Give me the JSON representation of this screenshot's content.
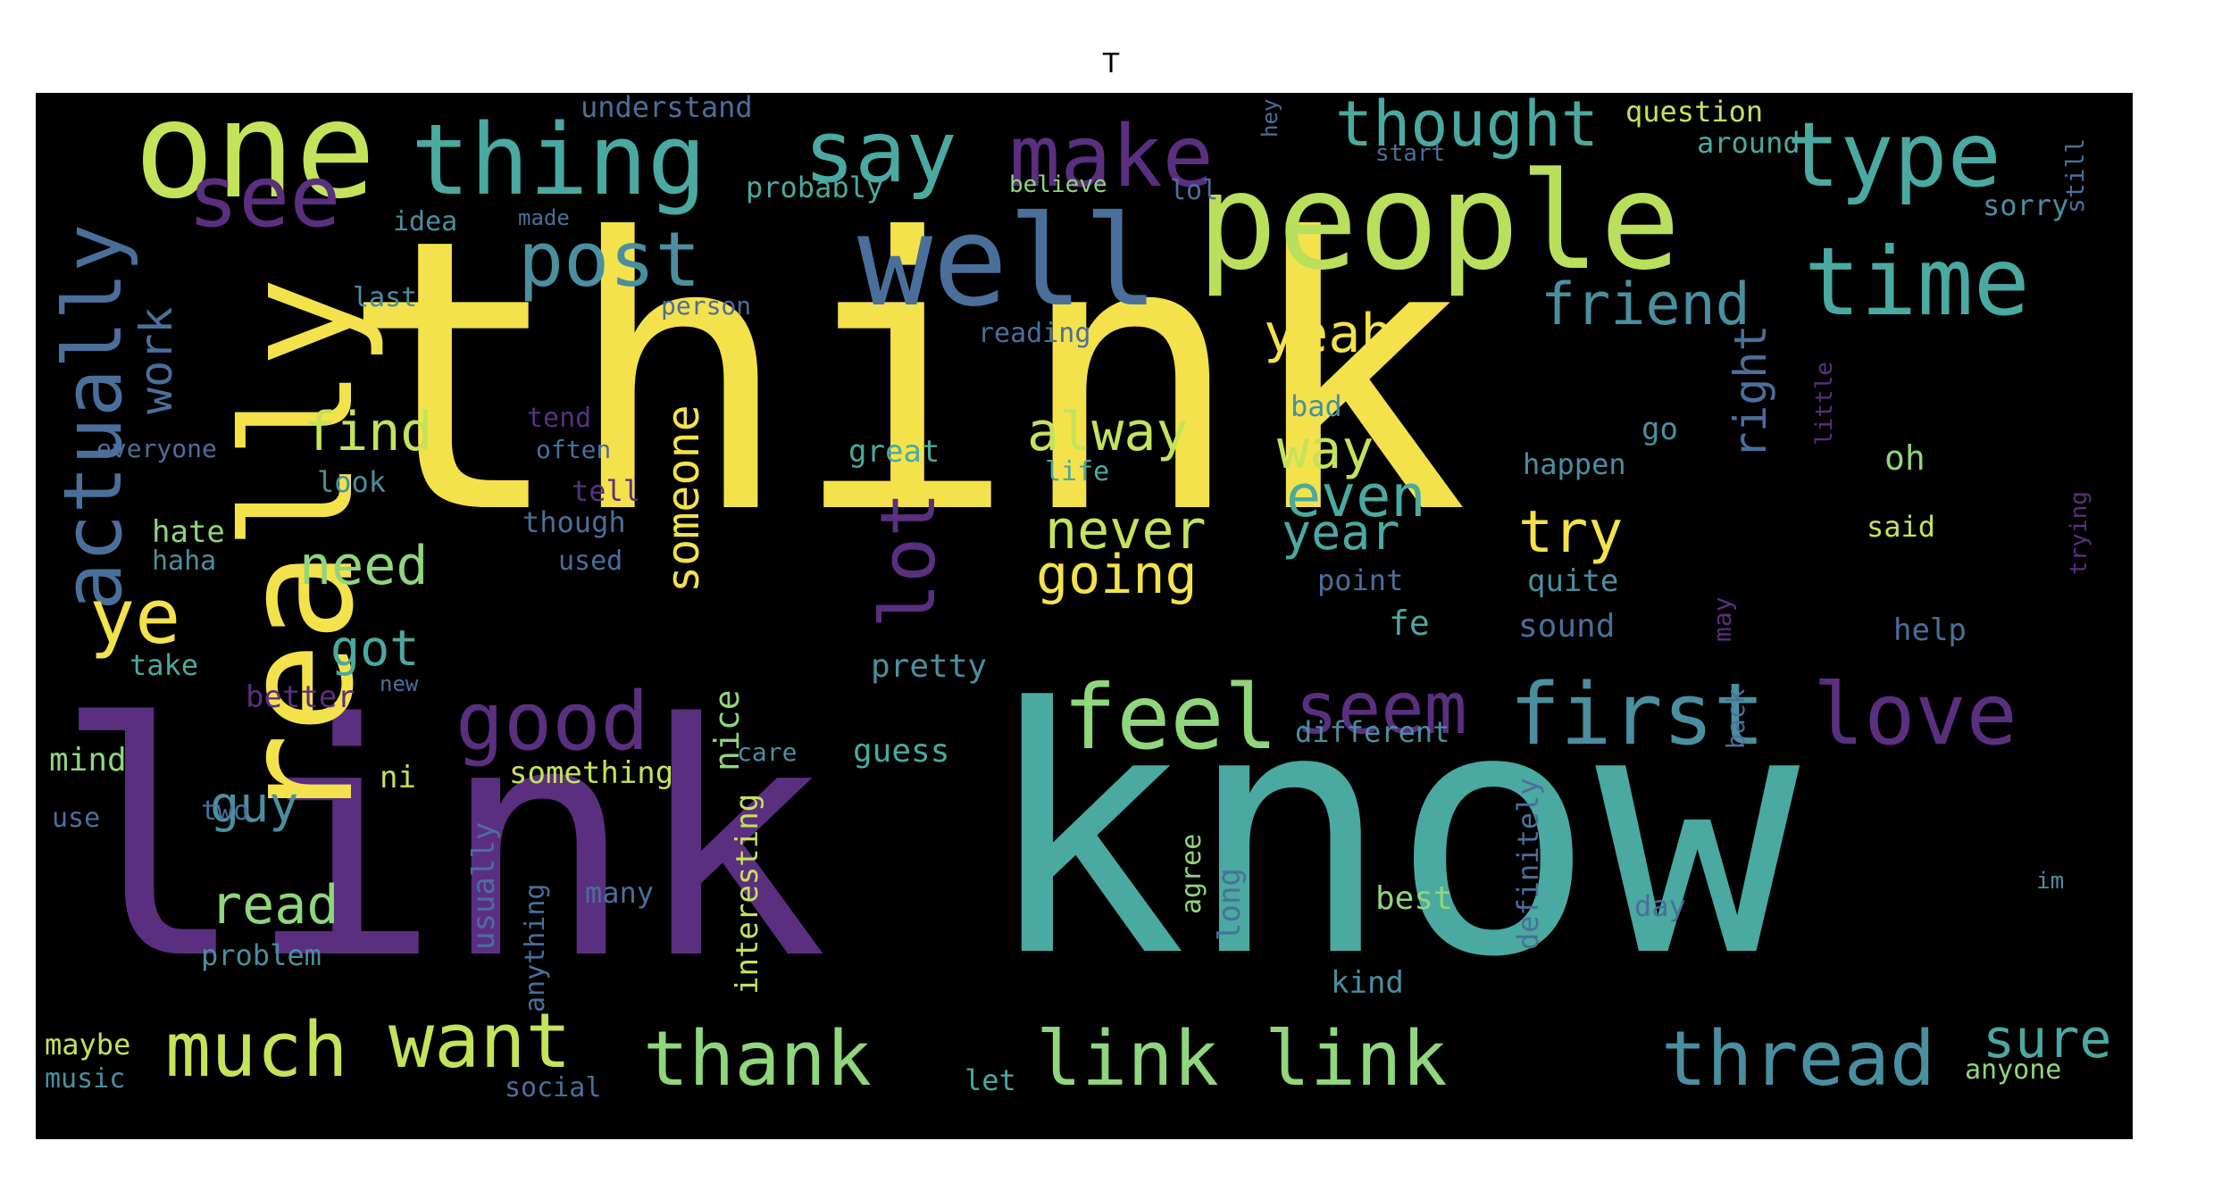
{
  "title": "T",
  "palette": {
    "yellow": "#f4e24c",
    "lime": "#c3e35a",
    "green": "#8fd67c",
    "teal": "#4aa9a0",
    "blue": "#4a6f9a",
    "purple": "#5b2f80",
    "violet": "#4b2a73",
    "bg": "#000000"
  },
  "words": [
    {
      "text": "think",
      "color": "#f4e24c"
    },
    {
      "text": "link",
      "color": "#5b2f80"
    },
    {
      "text": "know",
      "color": "#4aa9a0"
    },
    {
      "text": "people",
      "color": "#b9df5c"
    },
    {
      "text": "really",
      "color": "#f4e24c"
    },
    {
      "text": "one",
      "color": "#c3e35a"
    },
    {
      "text": "well",
      "color": "#4a6f9a"
    },
    {
      "text": "thing",
      "color": "#4aa9a0"
    },
    {
      "text": "time",
      "color": "#4aa9a0"
    },
    {
      "text": "type",
      "color": "#4aa9a0"
    },
    {
      "text": "say",
      "color": "#4aa9a0"
    },
    {
      "text": "make",
      "color": "#5b2f80"
    },
    {
      "text": "see",
      "color": "#5b2f80"
    },
    {
      "text": "post",
      "color": "#4a8fa0"
    },
    {
      "text": "actually",
      "color": "#4a6f9a"
    },
    {
      "text": "thought",
      "color": "#4aa9a0"
    },
    {
      "text": "friend",
      "color": "#4a8fa0"
    },
    {
      "text": "feel",
      "color": "#8fd67c"
    },
    {
      "text": "seem",
      "color": "#5b2f80"
    },
    {
      "text": "first",
      "color": "#4a8fa0"
    },
    {
      "text": "love",
      "color": "#5b2f80"
    },
    {
      "text": "good",
      "color": "#5b2f80"
    },
    {
      "text": "much",
      "color": "#c3e35a"
    },
    {
      "text": "want",
      "color": "#c3e35a"
    },
    {
      "text": "thank",
      "color": "#8fd67c"
    },
    {
      "text": "link link",
      "color": "#8fd67c"
    },
    {
      "text": "thread",
      "color": "#4a8fa0"
    },
    {
      "text": "sure",
      "color": "#4aa9a0"
    },
    {
      "text": "yeah",
      "color": "#f4e24c"
    },
    {
      "text": "alway",
      "color": "#c3e35a"
    },
    {
      "text": "way",
      "color": "#c3e35a"
    },
    {
      "text": "even",
      "color": "#4aa9a0"
    },
    {
      "text": "year",
      "color": "#4aa9a0"
    },
    {
      "text": "never",
      "color": "#c3e35a"
    },
    {
      "text": "going",
      "color": "#f4e24c"
    },
    {
      "text": "try",
      "color": "#f4e24c"
    },
    {
      "text": "lot",
      "color": "#5b2f80"
    },
    {
      "text": "someone",
      "color": "#f4e24c"
    },
    {
      "text": "need",
      "color": "#8fd67c"
    },
    {
      "text": "find",
      "color": "#c3e35a"
    },
    {
      "text": "work",
      "color": "#4a6f9a"
    },
    {
      "text": "ye",
      "color": "#f4e24c"
    },
    {
      "text": "got",
      "color": "#4aa9a0"
    },
    {
      "text": "guy",
      "color": "#4a8fa0"
    },
    {
      "text": "read",
      "color": "#8fd67c"
    },
    {
      "text": "right",
      "color": "#4a6f9a"
    },
    {
      "text": "understand",
      "color": "#4a6f9a"
    },
    {
      "text": "question",
      "color": "#c3e35a"
    },
    {
      "text": "around",
      "color": "#4aa9a0"
    },
    {
      "text": "probably",
      "color": "#4aa9a0"
    },
    {
      "text": "believe",
      "color": "#8fd67c"
    },
    {
      "text": "lol",
      "color": "#4a6f9a"
    },
    {
      "text": "sorry",
      "color": "#4a8fa0"
    },
    {
      "text": "still",
      "color": "#4a6f9a"
    },
    {
      "text": "idea",
      "color": "#4a8fa0"
    },
    {
      "text": "made",
      "color": "#4a6f9a"
    },
    {
      "text": "start",
      "color": "#4a6f9a"
    },
    {
      "text": "last",
      "color": "#4a8fa0"
    },
    {
      "text": "person",
      "color": "#4a6f9a"
    },
    {
      "text": "reading",
      "color": "#4a6f9a"
    },
    {
      "text": "bad",
      "color": "#4a8fa0"
    },
    {
      "text": "tend",
      "color": "#5b2f80"
    },
    {
      "text": "go",
      "color": "#4a8fa0"
    },
    {
      "text": "everyone",
      "color": "#4a6f9a"
    },
    {
      "text": "often",
      "color": "#4a6f9a"
    },
    {
      "text": "great",
      "color": "#4aa9a0"
    },
    {
      "text": "life",
      "color": "#4aa9a0"
    },
    {
      "text": "look",
      "color": "#4a8fa0"
    },
    {
      "text": "happen",
      "color": "#4a8fa0"
    },
    {
      "text": "oh",
      "color": "#8fd67c"
    },
    {
      "text": "tell",
      "color": "#5b2f80"
    },
    {
      "text": "hate",
      "color": "#8fd67c"
    },
    {
      "text": "though",
      "color": "#4a6f9a"
    },
    {
      "text": "said",
      "color": "#c3e35a"
    },
    {
      "text": "haha",
      "color": "#4a8fa0"
    },
    {
      "text": "used",
      "color": "#4a6f9a"
    },
    {
      "text": "point",
      "color": "#4a6f9a"
    },
    {
      "text": "quite",
      "color": "#4a8fa0"
    },
    {
      "text": "fe",
      "color": "#4aa9a0"
    },
    {
      "text": "sound",
      "color": "#4a6f9a"
    },
    {
      "text": "help",
      "color": "#4a6f9a"
    },
    {
      "text": "take",
      "color": "#4aa9a0"
    },
    {
      "text": "better",
      "color": "#5b2f80"
    },
    {
      "text": "pretty",
      "color": "#4a8fa0"
    },
    {
      "text": "nice",
      "color": "#8fd67c"
    },
    {
      "text": "different",
      "color": "#4a8fa0"
    },
    {
      "text": "mind",
      "color": "#8fd67c"
    },
    {
      "text": "care",
      "color": "#4a8fa0"
    },
    {
      "text": "guess",
      "color": "#4aa9a0"
    },
    {
      "text": "something",
      "color": "#c3e35a"
    },
    {
      "text": "ni",
      "color": "#c3e35a"
    },
    {
      "text": "two",
      "color": "#4a6f9a"
    },
    {
      "text": "use",
      "color": "#4a6f9a"
    },
    {
      "text": "usually",
      "color": "#4a6f9a"
    },
    {
      "text": "interesting",
      "color": "#c3e35a"
    },
    {
      "text": "many",
      "color": "#4a6f9a"
    },
    {
      "text": "agree",
      "color": "#8fd67c"
    },
    {
      "text": "long",
      "color": "#4a6f9a"
    },
    {
      "text": "definitely",
      "color": "#4a6f9a"
    },
    {
      "text": "best",
      "color": "#8fd67c"
    },
    {
      "text": "day",
      "color": "#4a6f9a"
    },
    {
      "text": "problem",
      "color": "#4a8fa0"
    },
    {
      "text": "anything",
      "color": "#4a6f9a"
    },
    {
      "text": "kind",
      "color": "#4a8fa0"
    },
    {
      "text": "maybe",
      "color": "#c3e35a"
    },
    {
      "text": "music",
      "color": "#4a8fa0"
    },
    {
      "text": "social",
      "color": "#4a6f9a"
    },
    {
      "text": "let",
      "color": "#4aa9a0"
    },
    {
      "text": "anyone",
      "color": "#8fd67c"
    },
    {
      "text": "may",
      "color": "#5b2f80"
    },
    {
      "text": "back",
      "color": "#4a6f9a"
    },
    {
      "text": "hey",
      "color": "#4a6f9a"
    },
    {
      "text": "little",
      "color": "#5b2f80"
    },
    {
      "text": "trying",
      "color": "#5b2f80"
    },
    {
      "text": "new",
      "color": "#4a6f9a"
    },
    {
      "text": "im",
      "color": "#4a8fa0"
    }
  ]
}
